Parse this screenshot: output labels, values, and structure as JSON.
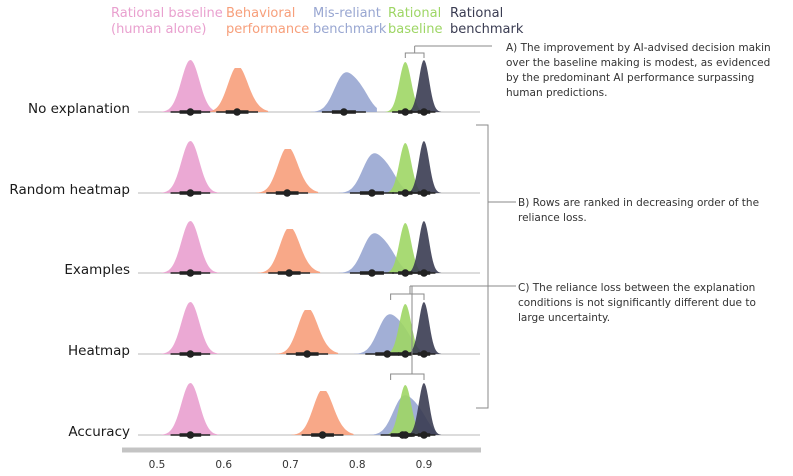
{
  "chart_data": {
    "type": "ridgeline",
    "title": "",
    "xlabel": "",
    "ylabel": "",
    "xlim": [
      0.46,
      0.96
    ],
    "x_ticks": [
      0.5,
      0.6,
      0.7,
      0.8,
      0.9
    ],
    "x_tick_labels": [
      "0.5",
      "0.6",
      "0.7",
      "0.8",
      "0.9"
    ],
    "legend": [
      {
        "key": "rational_human",
        "lines": [
          "Rational baseline",
          "(human alone)"
        ],
        "color": "#e9a0cf"
      },
      {
        "key": "behavioral",
        "lines": [
          "Behavioral",
          "performance"
        ],
        "color": "#f79f7b"
      },
      {
        "key": "misreliant",
        "lines": [
          "Mis-reliant",
          "benchmark"
        ],
        "color": "#98a6d1"
      },
      {
        "key": "rational_baseline",
        "lines": [
          "Rational",
          "baseline"
        ],
        "color": "#9ed665"
      },
      {
        "key": "rational_benchmark",
        "lines": [
          "Rational",
          "benchmark"
        ],
        "color": "#3a3c52"
      }
    ],
    "rows": [
      {
        "label": "No explanation",
        "medians": {
          "rational_human": 0.55,
          "behavioral": 0.62,
          "misreliant": 0.78,
          "rational_baseline": 0.872,
          "rational_benchmark": 0.9
        }
      },
      {
        "label": "Random heatmap",
        "medians": {
          "rational_human": 0.55,
          "behavioral": 0.695,
          "misreliant": 0.822,
          "rational_baseline": 0.872,
          "rational_benchmark": 0.9
        }
      },
      {
        "label": "Examples",
        "medians": {
          "rational_human": 0.55,
          "behavioral": 0.698,
          "misreliant": 0.822,
          "rational_baseline": 0.872,
          "rational_benchmark": 0.9
        }
      },
      {
        "label": "Heatmap",
        "medians": {
          "rational_human": 0.55,
          "behavioral": 0.725,
          "misreliant": 0.845,
          "rational_baseline": 0.872,
          "rational_benchmark": 0.9
        }
      },
      {
        "label": "Accuracy",
        "medians": {
          "rational_human": 0.55,
          "behavioral": 0.748,
          "misreliant": 0.868,
          "rational_baseline": 0.872,
          "rational_benchmark": 0.9
        }
      }
    ],
    "annotations": [
      {
        "key": "A",
        "lines": [
          "A) The improvement by AI-advised decision makin",
          "over the baseline making is modest, as evidenced",
          "by the predominant AI performance surpassing",
          "human predictions."
        ]
      },
      {
        "key": "B",
        "lines": [
          "B) Rows are ranked in decreasing order of the",
          "reliance loss."
        ]
      },
      {
        "key": "C",
        "lines": [
          "C) The reliance loss between the explanation",
          "conditions is not significantly different due to",
          "large uncertainty."
        ]
      }
    ]
  }
}
